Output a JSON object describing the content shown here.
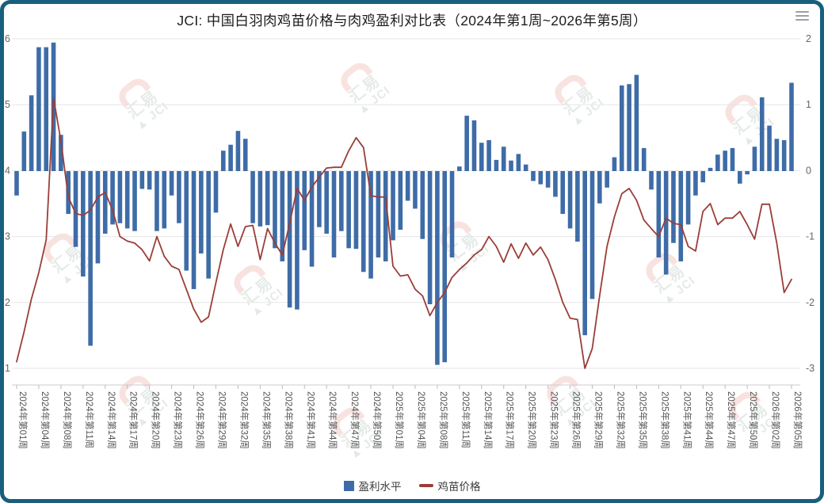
{
  "header": {
    "title": "JCI: 中国白羽肉鸡苗价格与肉鸡盈利对比表（2024年第1周~2026年第5周）",
    "menu_icon": "hamburger-menu-icon"
  },
  "watermark": {
    "logo_text": "汇易",
    "brand_text": "▲ JCI"
  },
  "legend": [
    {
      "label": "盈利水平",
      "type": "bar",
      "color": "#3E6CA7"
    },
    {
      "label": "鸡苗价格",
      "type": "line",
      "color": "#9A3E38"
    }
  ],
  "axes": {
    "left_ticks": [
      6,
      5,
      4,
      3,
      2,
      1
    ],
    "right_ticks": [
      2,
      1,
      0,
      -1,
      -2,
      -3
    ],
    "x_tick_interval": 3,
    "x_tick_labels": [
      "2024年第01周",
      "2024年第04周",
      "2024年第08周",
      "2024年第11周",
      "2024年第14周",
      "2024年第17周",
      "2024年第20周",
      "2024年第23周",
      "2024年第26周",
      "2024年第29周",
      "2024年第32周",
      "2024年第35周",
      "2024年第38周",
      "2024年第41周",
      "2024年第44周",
      "2024年第47周",
      "2024年第50周",
      "2025年第01周",
      "2025年第04周",
      "2025年第08周",
      "2025年第11周",
      "2025年第14周",
      "2025年第17周",
      "2025年第20周",
      "2025年第23周",
      "2025年第26周",
      "2025年第29周",
      "2025年第32周",
      "2025年第35周",
      "2025年第38周",
      "2025年第41周",
      "2025年第44周",
      "2025年第47周",
      "2025年第50周",
      "2026年第02周",
      "2026年第05周"
    ]
  },
  "chart_data": {
    "type": "bar",
    "title": "JCI: 中国白羽肉鸡苗价格与肉鸡盈利对比表（2024年第1周~2026年第5周）",
    "x_count": 106,
    "x_tick_positions_every": 3,
    "categories_visible_ticks": [
      "2024年第01周",
      "2024年第04周",
      "2024年第08周",
      "2024年第11周",
      "2024年第14周",
      "2024年第17周",
      "2024年第20周",
      "2024年第23周",
      "2024年第26周",
      "2024年第29周",
      "2024年第32周",
      "2024年第35周",
      "2024年第38周",
      "2024年第41周",
      "2024年第44周",
      "2024年第47周",
      "2024年第50周",
      "2025年第01周",
      "2025年第04周",
      "2025年第08周",
      "2025年第11周",
      "2025年第14周",
      "2025年第17周",
      "2025年第20周",
      "2025年第23周",
      "2025年第26周",
      "2025年第29周",
      "2025年第32周",
      "2025年第35周",
      "2025年第38周",
      "2025年第41周",
      "2025年第44周",
      "2025年第47周",
      "2025年第50周",
      "2026年第02周",
      "2026年第05周"
    ],
    "ylim_left": [
      1,
      6
    ],
    "ylim_right": [
      -3,
      2
    ],
    "grid": true,
    "legend_position": "bottom",
    "series": [
      {
        "name": "盈利水平",
        "type": "bar",
        "axis": "right",
        "color": "#3E6CA7",
        "values": [
          -0.37,
          0.6,
          1.15,
          1.88,
          1.88,
          1.95,
          0.55,
          -0.65,
          -1.15,
          -1.6,
          -2.65,
          -1.4,
          -0.95,
          -0.81,
          -0.79,
          -0.87,
          -0.91,
          -0.27,
          -0.28,
          -0.91,
          -0.87,
          -0.37,
          -0.79,
          -1.51,
          -1.79,
          -1.25,
          -1.63,
          -0.63,
          0.31,
          0.4,
          0.61,
          0.49,
          -0.79,
          -0.84,
          -0.82,
          -1.17,
          -1.37,
          -2.07,
          -2.1,
          -1.2,
          -1.45,
          -0.85,
          -0.95,
          -1.31,
          -0.91,
          -1.17,
          -1.18,
          -1.53,
          -1.63,
          -1.31,
          -1.37,
          -1.05,
          -0.89,
          -0.45,
          -0.57,
          -1.03,
          -2.02,
          -2.94,
          -2.9,
          -1.31,
          0.07,
          0.84,
          0.77,
          0.43,
          0.47,
          0.17,
          0.37,
          0.16,
          0.26,
          0.1,
          -0.15,
          -0.2,
          -0.25,
          -0.39,
          -0.65,
          -0.87,
          -1.07,
          -2.49,
          -1.94,
          -0.49,
          -0.25,
          0.21,
          1.3,
          1.32,
          1.46,
          0.35,
          -0.28,
          -1.31,
          -1.57,
          -1.09,
          -1.37,
          -0.81,
          -0.37,
          -0.17,
          0.05,
          0.25,
          0.31,
          0.35,
          -0.19,
          -0.05,
          0.37,
          1.12,
          0.69,
          0.49,
          0.47,
          1.34
        ]
      },
      {
        "name": "鸡苗价格",
        "type": "line",
        "axis": "left",
        "color": "#9A3E38",
        "values": [
          1.1,
          1.55,
          2.05,
          2.45,
          2.95,
          5.1,
          4.45,
          3.6,
          3.35,
          3.32,
          3.4,
          3.6,
          3.67,
          3.4,
          3.0,
          2.93,
          2.9,
          2.8,
          2.63,
          3.0,
          2.7,
          2.55,
          2.5,
          2.2,
          1.9,
          1.7,
          1.78,
          2.3,
          2.8,
          3.19,
          2.85,
          3.15,
          3.17,
          2.65,
          3.12,
          2.9,
          2.72,
          3.2,
          3.73,
          3.55,
          3.75,
          3.9,
          4.04,
          4.05,
          4.05,
          4.3,
          4.5,
          4.35,
          3.62,
          3.6,
          3.6,
          2.55,
          2.4,
          2.42,
          2.2,
          2.1,
          1.8,
          2.0,
          2.15,
          2.38,
          2.5,
          2.6,
          2.72,
          2.8,
          3.0,
          2.85,
          2.61,
          2.89,
          2.67,
          2.9,
          2.72,
          2.84,
          2.65,
          2.35,
          2.0,
          1.76,
          1.74,
          1.0,
          1.3,
          2.1,
          2.85,
          3.3,
          3.65,
          3.73,
          3.55,
          3.25,
          3.12,
          3.0,
          3.28,
          3.2,
          3.18,
          2.85,
          2.78,
          3.38,
          3.5,
          3.18,
          3.28,
          3.28,
          3.38,
          3.18,
          2.96,
          3.49,
          3.49,
          2.9,
          2.15,
          2.35
        ]
      }
    ]
  }
}
